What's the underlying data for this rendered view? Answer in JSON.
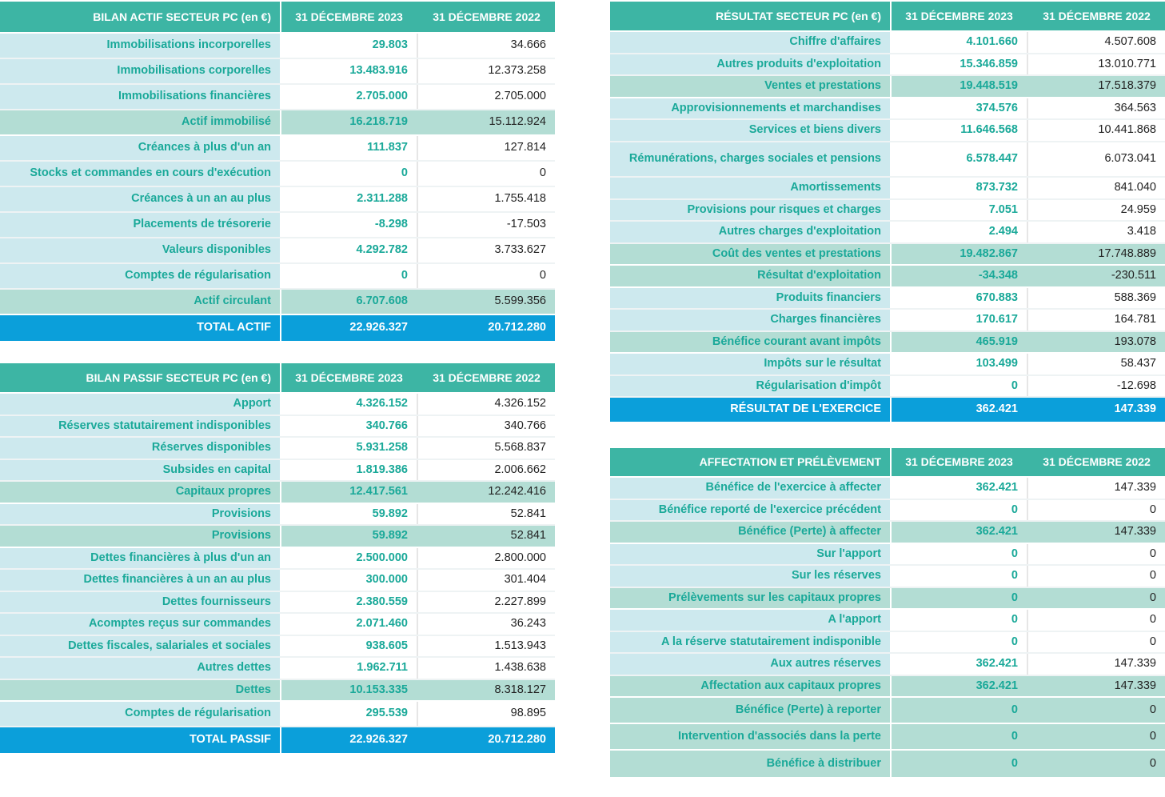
{
  "actif": {
    "header": {
      "label": "BILAN ACTIF  SECTEUR PC (en €)",
      "col1": "31 DÉCEMBRE 2023",
      "col2": "31 DÉCEMBRE 2022"
    },
    "rows": [
      {
        "label": "Immobilisations incorporelles",
        "v2023": "29.803",
        "v2022": "34.666",
        "type": "normal"
      },
      {
        "label": "Immobilisations corporelles",
        "v2023": "13.483.916",
        "v2022": "12.373.258",
        "type": "normal"
      },
      {
        "label": "Immobilisations financières",
        "v2023": "2.705.000",
        "v2022": "2.705.000",
        "type": "normal"
      },
      {
        "label": "Actif immobilisé",
        "v2023": "16.218.719",
        "v2022": "15.112.924",
        "type": "sub"
      },
      {
        "label": "Créances à plus d'un an",
        "v2023": "111.837",
        "v2022": "127.814",
        "type": "normal"
      },
      {
        "label": "Stocks et commandes en cours d'exécution",
        "v2023": "0",
        "v2022": "0",
        "type": "normal"
      },
      {
        "label": "Créances à un an au plus",
        "v2023": "2.311.288",
        "v2022": "1.755.418",
        "type": "normal"
      },
      {
        "label": "Placements de trésorerie",
        "v2023": "-8.298",
        "v2022": "-17.503",
        "type": "normal"
      },
      {
        "label": "Valeurs disponibles",
        "v2023": "4.292.782",
        "v2022": "3.733.627",
        "type": "normal"
      },
      {
        "label": "Comptes de régularisation",
        "v2023": "0",
        "v2022": "0",
        "type": "normal"
      },
      {
        "label": "Actif circulant",
        "v2023": "6.707.608",
        "v2022": "5.599.356",
        "type": "sub"
      },
      {
        "label": "TOTAL ACTIF",
        "v2023": "22.926.327",
        "v2022": "20.712.280",
        "type": "total"
      }
    ]
  },
  "passif": {
    "header": {
      "label": "BILAN PASSIF  SECTEUR PC (en €)",
      "col1": "31 DÉCEMBRE 2023",
      "col2": "31 DÉCEMBRE 2022"
    },
    "rows": [
      {
        "label": "Apport",
        "v2023": "4.326.152",
        "v2022": "4.326.152",
        "type": "normal"
      },
      {
        "label": "Réserves statutairement indisponibles",
        "v2023": "340.766",
        "v2022": "340.766",
        "type": "normal"
      },
      {
        "label": "Réserves disponibles",
        "v2023": "5.931.258",
        "v2022": "5.568.837",
        "type": "normal"
      },
      {
        "label": "Subsides en capital",
        "v2023": "1.819.386",
        "v2022": "2.006.662",
        "type": "normal"
      },
      {
        "label": "Capitaux propres",
        "v2023": "12.417.561",
        "v2022": "12.242.416",
        "type": "sub"
      },
      {
        "label": "Provisions",
        "v2023": "59.892",
        "v2022": "52.841",
        "type": "normal"
      },
      {
        "label": "Provisions",
        "v2023": "59.892",
        "v2022": "52.841",
        "type": "sub"
      },
      {
        "label": "Dettes financières à plus d'un an",
        "v2023": "2.500.000",
        "v2022": "2.800.000",
        "type": "normal"
      },
      {
        "label": "Dettes financières à un an au plus",
        "v2023": "300.000",
        "v2022": "301.404",
        "type": "normal"
      },
      {
        "label": "Dettes fournisseurs",
        "v2023": "2.380.559",
        "v2022": "2.227.899",
        "type": "normal"
      },
      {
        "label": "Acomptes reçus sur commandes",
        "v2023": "2.071.460",
        "v2022": "36.243",
        "type": "normal"
      },
      {
        "label": "Dettes fiscales, salariales et sociales",
        "v2023": "938.605",
        "v2022": "1.513.943",
        "type": "normal"
      },
      {
        "label": "Autres dettes",
        "v2023": "1.962.711",
        "v2022": "1.438.638",
        "type": "normal"
      },
      {
        "label": "Dettes",
        "v2023": "10.153.335",
        "v2022": "8.318.127",
        "type": "sub"
      },
      {
        "label": "Comptes de régularisation",
        "v2023": "295.539",
        "v2022": "98.895",
        "type": "normal"
      },
      {
        "label": "TOTAL PASSIF",
        "v2023": "22.926.327",
        "v2022": "20.712.280",
        "type": "total"
      }
    ]
  },
  "resultat": {
    "header": {
      "label": "RÉSULTAT SECTEUR PC (en €)",
      "col1": "31 DÉCEMBRE 2023",
      "col2": "31 DÉCEMBRE 2022"
    },
    "rows": [
      {
        "label": "Chiffre d'affaires",
        "v2023": "4.101.660",
        "v2022": "4.507.608",
        "type": "normal"
      },
      {
        "label": "Autres produits d'exploitation",
        "v2023": "15.346.859",
        "v2022": "13.010.771",
        "type": "normal"
      },
      {
        "label": "Ventes et prestations",
        "v2023": "19.448.519",
        "v2022": "17.518.379",
        "type": "sub"
      },
      {
        "label": "Approvisionnements et marchandises",
        "v2023": "374.576",
        "v2022": "364.563",
        "type": "normal"
      },
      {
        "label": "Services et biens divers",
        "v2023": "11.646.568",
        "v2022": "10.441.868",
        "type": "normal"
      },
      {
        "label": "Rémunérations, charges sociales et pensions",
        "v2023": "6.578.447",
        "v2022": "6.073.041",
        "type": "normal"
      },
      {
        "label": "Amortissements",
        "v2023": "873.732",
        "v2022": "841.040",
        "type": "normal"
      },
      {
        "label": "Provisions pour risques et charges",
        "v2023": "7.051",
        "v2022": "24.959",
        "type": "normal"
      },
      {
        "label": "Autres charges d'exploitation",
        "v2023": "2.494",
        "v2022": "3.418",
        "type": "normal"
      },
      {
        "label": "Coût des ventes et prestations",
        "v2023": "19.482.867",
        "v2022": "17.748.889",
        "type": "sub"
      },
      {
        "label": "Résultat d'exploitation",
        "v2023": "-34.348",
        "v2022": "-230.511",
        "type": "sub"
      },
      {
        "label": "Produits financiers",
        "v2023": "670.883",
        "v2022": "588.369",
        "type": "normal"
      },
      {
        "label": "Charges financières",
        "v2023": "170.617",
        "v2022": "164.781",
        "type": "normal"
      },
      {
        "label": "Bénéfice courant avant impôts",
        "v2023": "465.919",
        "v2022": "193.078",
        "type": "sub"
      },
      {
        "label": "Impôts sur le résultat",
        "v2023": "103.499",
        "v2022": "58.437",
        "type": "normal"
      },
      {
        "label": "Régularisation d'impôt",
        "v2023": "0",
        "v2022": "-12.698",
        "type": "normal"
      },
      {
        "label": "RÉSULTAT DE L'EXERCICE",
        "v2023": "362.421",
        "v2022": "147.339",
        "type": "total"
      }
    ]
  },
  "affectation": {
    "header": {
      "label": "AFFECTATION ET PRÉLÈVEMENT",
      "col1": "31 DÉCEMBRE 2023",
      "col2": "31 DÉCEMBRE 2022"
    },
    "rows": [
      {
        "label": "Bénéfice de l'exercice à affecter",
        "v2023": "362.421",
        "v2022": "147.339",
        "type": "normal"
      },
      {
        "label": "Bénéfice reporté de l'exercice précédent",
        "v2023": "0",
        "v2022": "0",
        "type": "normal"
      },
      {
        "label": "Bénéfice (Perte) à affecter",
        "v2023": "362.421",
        "v2022": "147.339",
        "type": "sub"
      },
      {
        "label": "Sur l'apport",
        "v2023": "0",
        "v2022": "0",
        "type": "normal"
      },
      {
        "label": "Sur les réserves",
        "v2023": "0",
        "v2022": "0",
        "type": "normal"
      },
      {
        "label": "Prélèvements sur les capitaux propres",
        "v2023": "0",
        "v2022": "0",
        "type": "sub"
      },
      {
        "label": "A l'apport",
        "v2023": "0",
        "v2022": "0",
        "type": "normal"
      },
      {
        "label": "A la réserve statutairement indisponible",
        "v2023": "0",
        "v2022": "0",
        "type": "normal"
      },
      {
        "label": "Aux autres réserves",
        "v2023": "362.421",
        "v2022": "147.339",
        "type": "normal"
      },
      {
        "label": "Affectation aux capitaux propres",
        "v2023": "362.421",
        "v2022": "147.339",
        "type": "sub"
      },
      {
        "label": "Bénéfice (Perte) à reporter",
        "v2023": "0",
        "v2022": "0",
        "type": "sub"
      },
      {
        "label": "Intervention d'associés dans la perte",
        "v2023": "0",
        "v2022": "0",
        "type": "sub"
      },
      {
        "label": "Bénéfice à distribuer",
        "v2023": "0",
        "v2022": "0",
        "type": "sub"
      }
    ]
  }
}
